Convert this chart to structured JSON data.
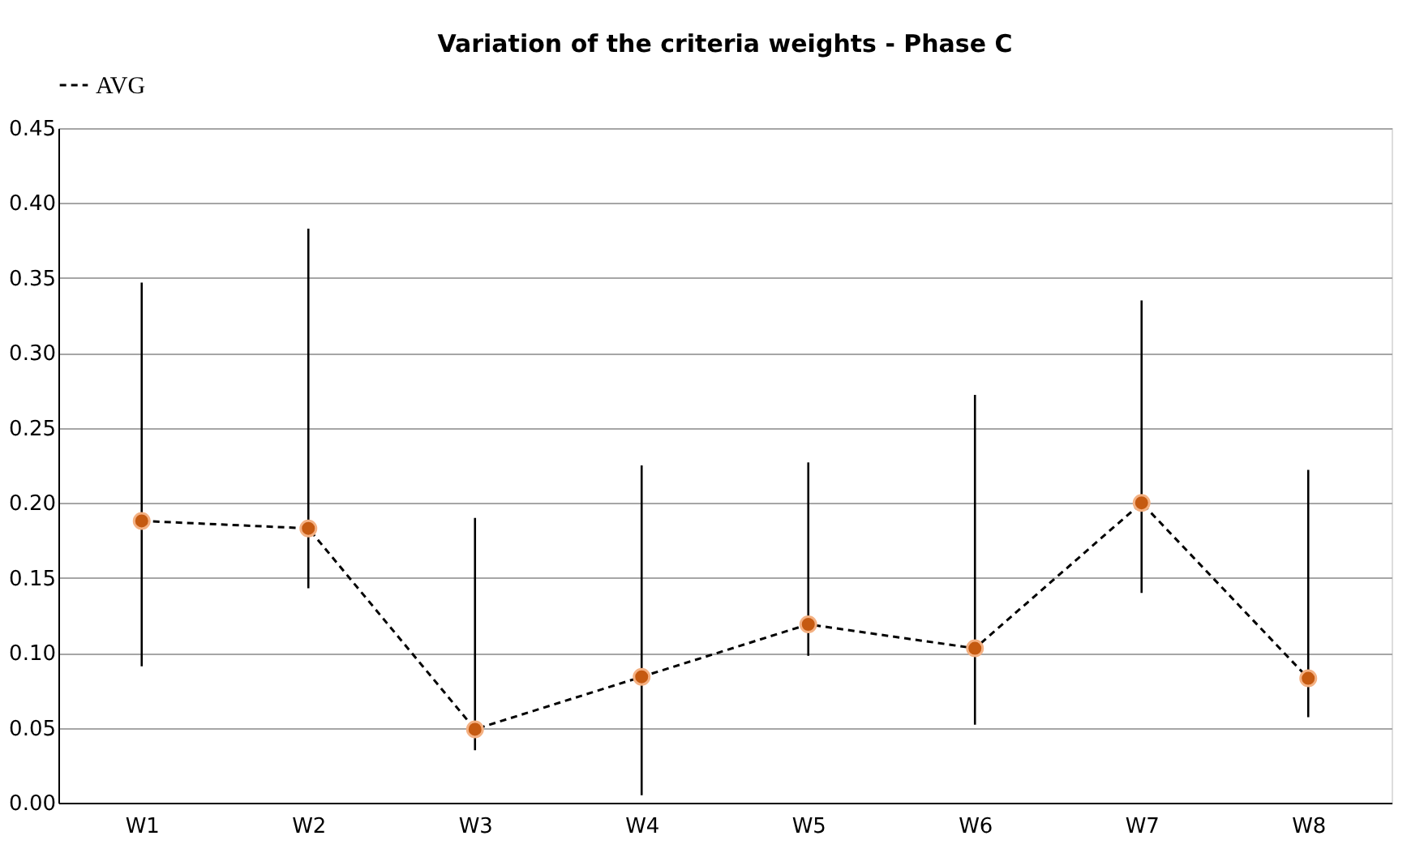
{
  "chart_data": {
    "type": "line",
    "title": "Variation of the criteria weights - Phase C",
    "categories": [
      "W1",
      "W2",
      "W3",
      "W4",
      "W5",
      "W6",
      "W7",
      "W8"
    ],
    "series": [
      {
        "name": "AVG",
        "color": "#c55a11",
        "values": [
          0.188,
          0.183,
          0.049,
          0.084,
          0.119,
          0.103,
          0.2,
          0.083
        ],
        "errors": [
          [
            0.091,
            0.347
          ],
          [
            0.143,
            0.383
          ],
          [
            0.035,
            0.19
          ],
          [
            0.005,
            0.225
          ],
          [
            0.098,
            0.227
          ],
          [
            0.052,
            0.272
          ],
          [
            0.14,
            0.335
          ],
          [
            0.057,
            0.222
          ]
        ]
      }
    ],
    "ylim": [
      0,
      0.45
    ],
    "yticks": [
      {
        "value": 0,
        "label": "0.00"
      },
      {
        "value": 0.05,
        "label": "0.05"
      },
      {
        "value": 0.1,
        "label": "0.10"
      },
      {
        "value": 0.15,
        "label": "0.15"
      },
      {
        "value": 0.2,
        "label": "0.20"
      },
      {
        "value": 0.25,
        "label": "0.25"
      },
      {
        "value": 0.3,
        "label": "0.30"
      },
      {
        "value": 0.35,
        "label": "0.35"
      },
      {
        "value": 0.4,
        "label": "0.40"
      },
      {
        "value": 0.45,
        "label": "0.45"
      }
    ],
    "grid": "y",
    "legend": "top",
    "marker": "circle",
    "line_style": "dashed"
  }
}
